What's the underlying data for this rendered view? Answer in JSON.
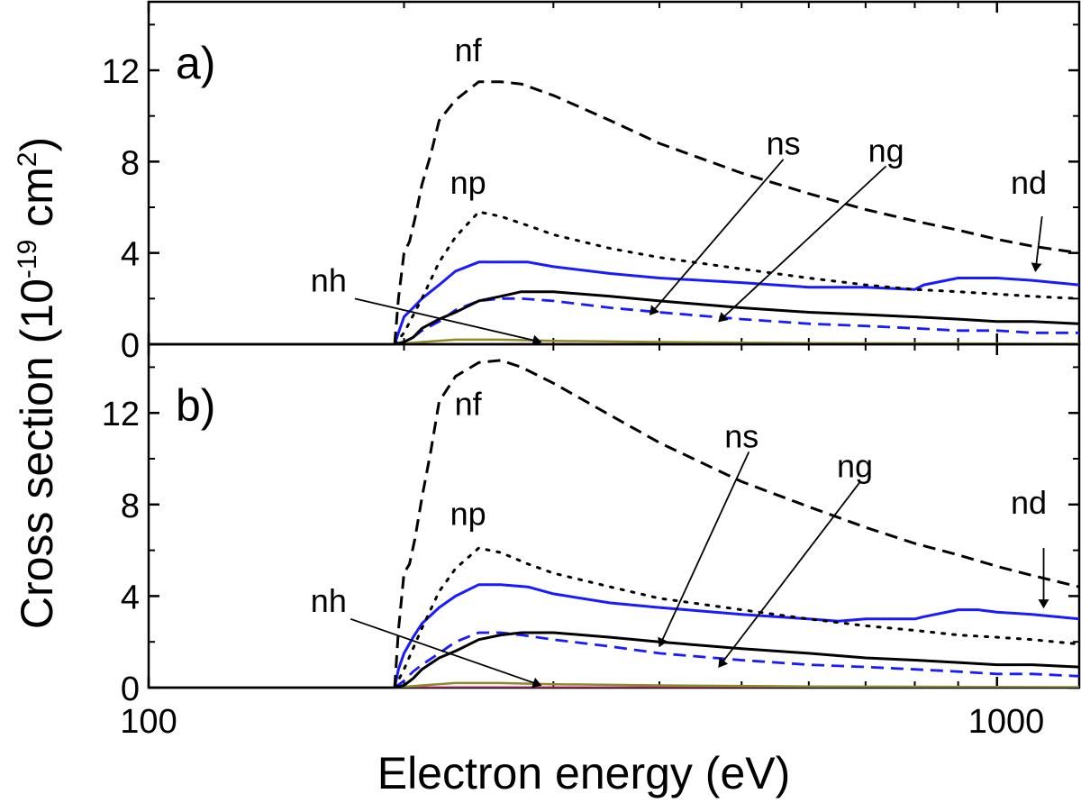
{
  "chart_data": {
    "type": "line",
    "x_scale": "log",
    "xlabel": "Electron energy (eV)",
    "ylabel_main": "Cross section (10",
    "ylabel_exp": "-19",
    "ylabel_units": " cm",
    "ylabel_exp2": "2",
    "ylabel_close": ")",
    "xlim": [
      100,
      1250
    ],
    "x_ticks": [
      100,
      1000
    ],
    "x_tick_labels": [
      "100",
      "1000"
    ],
    "x_minor_ticks": [
      200,
      300,
      400,
      500,
      600,
      700,
      800,
      900
    ],
    "colors": {
      "nf": "#000000",
      "np": "#000000",
      "nd": "#1a1aff",
      "ns": "#000000",
      "ng": "#1a1aff",
      "nh": "#8b8b2a",
      "baseline": "#cc2277"
    },
    "panels": [
      {
        "id": "a",
        "label": "a)",
        "ylim": [
          0,
          15
        ],
        "y_ticks": [
          0,
          4,
          8,
          12
        ],
        "y_tick_labels": [
          "0",
          "4",
          "8",
          "12"
        ],
        "series": [
          {
            "name": "nf",
            "style": "dashed",
            "x": [
              195,
              197,
              200,
              203,
              206,
              210,
              215,
              220,
              230,
              245,
              260,
              275,
              300,
              350,
              400,
              500,
              600,
              700,
              800,
              900,
              1000,
              1100,
              1250
            ],
            "y": [
              0,
              2.0,
              4.0,
              4.5,
              5.5,
              7.0,
              8.3,
              9.8,
              10.7,
              11.5,
              11.5,
              11.4,
              10.9,
              9.8,
              8.8,
              7.5,
              6.6,
              5.9,
              5.4,
              5.0,
              4.6,
              4.3,
              4.0
            ]
          },
          {
            "name": "np",
            "style": "dotted",
            "x": [
              195,
              200,
              210,
              220,
              230,
              245,
              260,
              280,
              300,
              350,
              400,
              500,
              600,
              700,
              800,
              900,
              1000,
              1100,
              1250
            ],
            "y": [
              0,
              0.5,
              2.0,
              3.6,
              4.7,
              5.8,
              5.6,
              5.2,
              4.8,
              4.2,
              3.8,
              3.3,
              2.9,
              2.6,
              2.4,
              2.3,
              2.2,
              2.1,
              2.0
            ]
          },
          {
            "name": "nd",
            "style": "solid",
            "x": [
              195,
              197,
              200,
              205,
              210,
              220,
              230,
              245,
              260,
              280,
              300,
              350,
              400,
              500,
              600,
              650,
              700,
              800,
              820,
              900,
              950,
              1000,
              1100,
              1250
            ],
            "y": [
              0,
              0.5,
              1.2,
              1.6,
              2.0,
              2.6,
              3.2,
              3.6,
              3.6,
              3.6,
              3.4,
              3.1,
              2.9,
              2.7,
              2.5,
              2.5,
              2.5,
              2.4,
              2.6,
              2.9,
              2.9,
              2.9,
              2.8,
              2.6
            ]
          },
          {
            "name": "ns",
            "style": "solid",
            "x": [
              195,
              200,
              205,
              210,
              220,
              230,
              245,
              260,
              275,
              300,
              350,
              400,
              500,
              600,
              700,
              800,
              900,
              1000,
              1100,
              1250
            ],
            "y": [
              0,
              0.1,
              0.3,
              0.7,
              1.1,
              1.4,
              1.9,
              2.1,
              2.3,
              2.3,
              2.1,
              1.9,
              1.6,
              1.4,
              1.3,
              1.2,
              1.1,
              1.0,
              1.0,
              0.9
            ]
          },
          {
            "name": "ng",
            "style": "dashed",
            "x": [
              195,
              200,
              205,
              210,
              220,
              230,
              245,
              260,
              275,
              300,
              350,
              400,
              500,
              600,
              700,
              800,
              900,
              1000,
              1100,
              1250
            ],
            "y": [
              0,
              0.1,
              0.3,
              0.6,
              1.0,
              1.5,
              1.9,
              2.0,
              2.0,
              1.9,
              1.6,
              1.4,
              1.1,
              0.9,
              0.8,
              0.7,
              0.6,
              0.6,
              0.5,
              0.5
            ]
          },
          {
            "name": "nh",
            "style": "solid",
            "x": [
              195,
              210,
              230,
              260,
              300,
              400,
              600,
              1250
            ],
            "y": [
              0,
              0.1,
              0.2,
              0.2,
              0.15,
              0.1,
              0.05,
              0.02
            ]
          },
          {
            "name": "baseline",
            "style": "solid",
            "x": [
              195,
              1250
            ],
            "y": [
              0,
              0
            ]
          }
        ],
        "labels": [
          {
            "text": "nf",
            "x": 238,
            "y": 12.4
          },
          {
            "text": "np",
            "x": 238,
            "y": 6.6
          },
          {
            "text": "nh",
            "x": 163,
            "y": 2.3
          },
          {
            "text": "ns",
            "x": 560,
            "y": 8.3
          },
          {
            "text": "ng",
            "x": 740,
            "y": 8.0
          },
          {
            "text": "nd",
            "x": 1090,
            "y": 6.6
          }
        ],
        "arrows": [
          {
            "from": [
              560,
              8.1
            ],
            "to": [
              390,
              1.3
            ]
          },
          {
            "from": [
              740,
              7.8
            ],
            "to": [
              470,
              1.0
            ]
          },
          {
            "from": [
              1130,
              5.6
            ],
            "to": [
              1110,
              3.2
            ]
          },
          {
            "from": [
              175,
              2.0
            ],
            "to": [
              290,
              0.1
            ]
          }
        ]
      },
      {
        "id": "b",
        "label": "b)",
        "ylim": [
          0,
          15
        ],
        "y_ticks": [
          0,
          4,
          8,
          12
        ],
        "y_tick_labels": [
          "0",
          "4",
          "8",
          "12"
        ],
        "series": [
          {
            "name": "nf",
            "style": "dashed",
            "x": [
              195,
              197,
              200,
              203,
              206,
              210,
              215,
              220,
              230,
              245,
              260,
              275,
              300,
              350,
              400,
              500,
              600,
              700,
              800,
              900,
              1000,
              1100,
              1250
            ],
            "y": [
              0,
              2.5,
              5.0,
              5.4,
              6.5,
              8.3,
              10.3,
              12.5,
              13.6,
              14.2,
              14.3,
              14.0,
              13.3,
              11.9,
              10.7,
              9.0,
              7.9,
              7.0,
              6.3,
              5.8,
              5.3,
              4.9,
              4.4
            ]
          },
          {
            "name": "np",
            "style": "dotted",
            "x": [
              195,
              200,
              210,
              220,
              230,
              245,
              260,
              280,
              300,
              350,
              400,
              500,
              600,
              700,
              800,
              900,
              1000,
              1100,
              1250
            ],
            "y": [
              0,
              0.8,
              2.6,
              4.2,
              5.2,
              6.1,
              5.9,
              5.4,
              5.0,
              4.4,
              3.9,
              3.4,
              3.0,
              2.7,
              2.5,
              2.3,
              2.2,
              2.1,
              1.9
            ]
          },
          {
            "name": "nd",
            "style": "solid",
            "x": [
              195,
              197,
              200,
              205,
              210,
              220,
              230,
              245,
              260,
              280,
              300,
              350,
              400,
              500,
              600,
              650,
              700,
              800,
              820,
              900,
              950,
              1000,
              1100,
              1250
            ],
            "y": [
              0,
              0.8,
              1.5,
              2.2,
              2.8,
              3.5,
              4.0,
              4.5,
              4.5,
              4.4,
              4.1,
              3.7,
              3.5,
              3.2,
              3.0,
              2.9,
              3.0,
              3.0,
              3.1,
              3.4,
              3.4,
              3.3,
              3.2,
              3.0
            ]
          },
          {
            "name": "ns",
            "style": "solid",
            "x": [
              195,
              200,
              205,
              210,
              220,
              230,
              245,
              260,
              275,
              300,
              350,
              400,
              500,
              600,
              700,
              800,
              900,
              1000,
              1100,
              1250
            ],
            "y": [
              0,
              0.1,
              0.4,
              0.8,
              1.3,
              1.6,
              2.1,
              2.3,
              2.4,
              2.4,
              2.2,
              2.0,
              1.7,
              1.5,
              1.3,
              1.2,
              1.1,
              1.0,
              1.0,
              0.9
            ]
          },
          {
            "name": "ng",
            "style": "dashed",
            "x": [
              195,
              200,
              205,
              210,
              220,
              230,
              245,
              260,
              275,
              300,
              350,
              400,
              500,
              600,
              700,
              800,
              900,
              1000,
              1100,
              1250
            ],
            "y": [
              0,
              0.3,
              0.7,
              1.0,
              1.5,
              2.0,
              2.4,
              2.4,
              2.3,
              2.1,
              1.8,
              1.5,
              1.2,
              1.0,
              0.9,
              0.8,
              0.7,
              0.6,
              0.6,
              0.5
            ]
          },
          {
            "name": "nh",
            "style": "solid",
            "x": [
              195,
              210,
              230,
              260,
              300,
              400,
              600,
              1250
            ],
            "y": [
              0,
              0.1,
              0.2,
              0.2,
              0.15,
              0.1,
              0.05,
              0.02
            ]
          },
          {
            "name": "baseline",
            "style": "solid",
            "x": [
              195,
              1250
            ],
            "y": [
              0,
              0
            ]
          }
        ],
        "labels": [
          {
            "text": "nf",
            "x": 238,
            "y": 11.9
          },
          {
            "text": "np",
            "x": 238,
            "y": 7.1
          },
          {
            "text": "nh",
            "x": 163,
            "y": 3.3
          },
          {
            "text": "ns",
            "x": 500,
            "y": 10.5
          },
          {
            "text": "ng",
            "x": 680,
            "y": 9.2
          },
          {
            "text": "nd",
            "x": 1090,
            "y": 7.6
          }
        ],
        "arrows": [
          {
            "from": [
              510,
              10.3
            ],
            "to": [
              400,
              1.8
            ]
          },
          {
            "from": [
              690,
              9.0
            ],
            "to": [
              470,
              0.9
            ]
          },
          {
            "from": [
              1135,
              6.1
            ],
            "to": [
              1135,
              3.5
            ]
          },
          {
            "from": [
              173,
              3.0
            ],
            "to": [
              290,
              0.1
            ]
          }
        ]
      }
    ]
  }
}
